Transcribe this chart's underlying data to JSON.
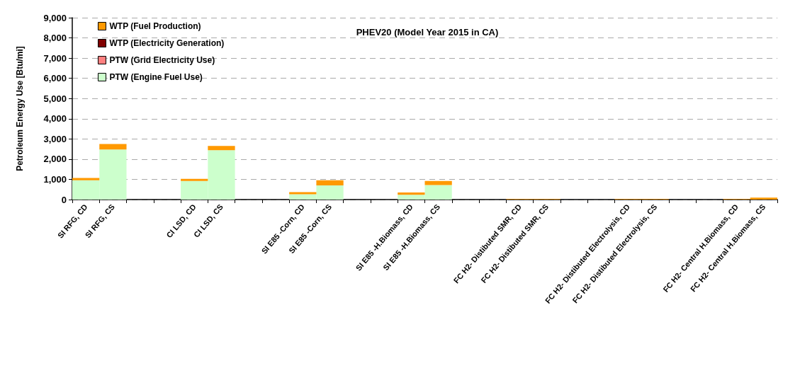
{
  "chart_data": {
    "type": "bar",
    "title": "PHEV20 (Model Year 2015 in CA)",
    "ylabel": "Petroleum Energy Use [Btu/mi]",
    "categories": [
      "SI RFG, CD",
      "SI RFG, CS",
      null,
      null,
      "CI LSD, CD",
      "CI LSD, CS",
      null,
      null,
      "SI E85 -Corn, CD",
      "SI E85 -Corn, CS",
      null,
      null,
      "SI E85 -H.Biomass, CD",
      "SI E85 -H.Biomass, CS",
      null,
      null,
      "FC H2- Distibuted SMR, CD",
      "FC H2- Distibuted SMR, CS",
      null,
      null,
      "FC H2- Distibuted Electrolysis, CD",
      "FC H2- Distibuted Electrolysis, CS",
      null,
      null,
      "FC H2- Central H.Biomass, CD",
      "FC H2- Central H.Biomass, CS"
    ],
    "stacked": true,
    "series": [
      {
        "name": "PTW (Engine Fuel Use)",
        "color": "#ccffcc",
        "values": [
          950,
          2480,
          null,
          null,
          920,
          2440,
          null,
          null,
          260,
          700,
          null,
          null,
          240,
          720,
          null,
          null,
          null,
          null,
          null,
          null,
          null,
          null,
          null,
          null,
          null,
          null
        ]
      },
      {
        "name": "PTW (Grid Electricity Use)",
        "color": "#ff8080",
        "values": [
          null,
          null,
          null,
          null,
          null,
          null,
          null,
          null,
          null,
          null,
          null,
          null,
          null,
          null,
          null,
          null,
          null,
          null,
          null,
          null,
          null,
          null,
          null,
          null,
          null,
          null
        ]
      },
      {
        "name": "WTP (Electricity Generation)",
        "color": "#800000",
        "values": [
          null,
          null,
          null,
          null,
          null,
          null,
          null,
          null,
          null,
          null,
          null,
          null,
          null,
          null,
          null,
          null,
          null,
          null,
          null,
          null,
          null,
          null,
          null,
          null,
          null,
          null
        ]
      },
      {
        "name": "WTP (Fuel Production)",
        "color": "#ff9900",
        "values": [
          120,
          270,
          null,
          null,
          100,
          210,
          null,
          null,
          110,
          250,
          null,
          null,
          110,
          200,
          null,
          null,
          30,
          30,
          null,
          null,
          30,
          30,
          null,
          null,
          30,
          100
        ]
      }
    ],
    "ylim": [
      0,
      9000
    ],
    "yticks": [
      {
        "value": 0,
        "label": "0"
      },
      {
        "value": 1000,
        "label": "1,000"
      },
      {
        "value": 2000,
        "label": "2,000"
      },
      {
        "value": 3000,
        "label": "3,000"
      },
      {
        "value": 4000,
        "label": "4,000"
      },
      {
        "value": 5000,
        "label": "5,000"
      },
      {
        "value": 6000,
        "label": "6,000"
      },
      {
        "value": 7000,
        "label": "7,000"
      },
      {
        "value": 8000,
        "label": "8,000"
      },
      {
        "value": 9000,
        "label": "9,000"
      }
    ],
    "grid": "y",
    "legend": "top left"
  }
}
